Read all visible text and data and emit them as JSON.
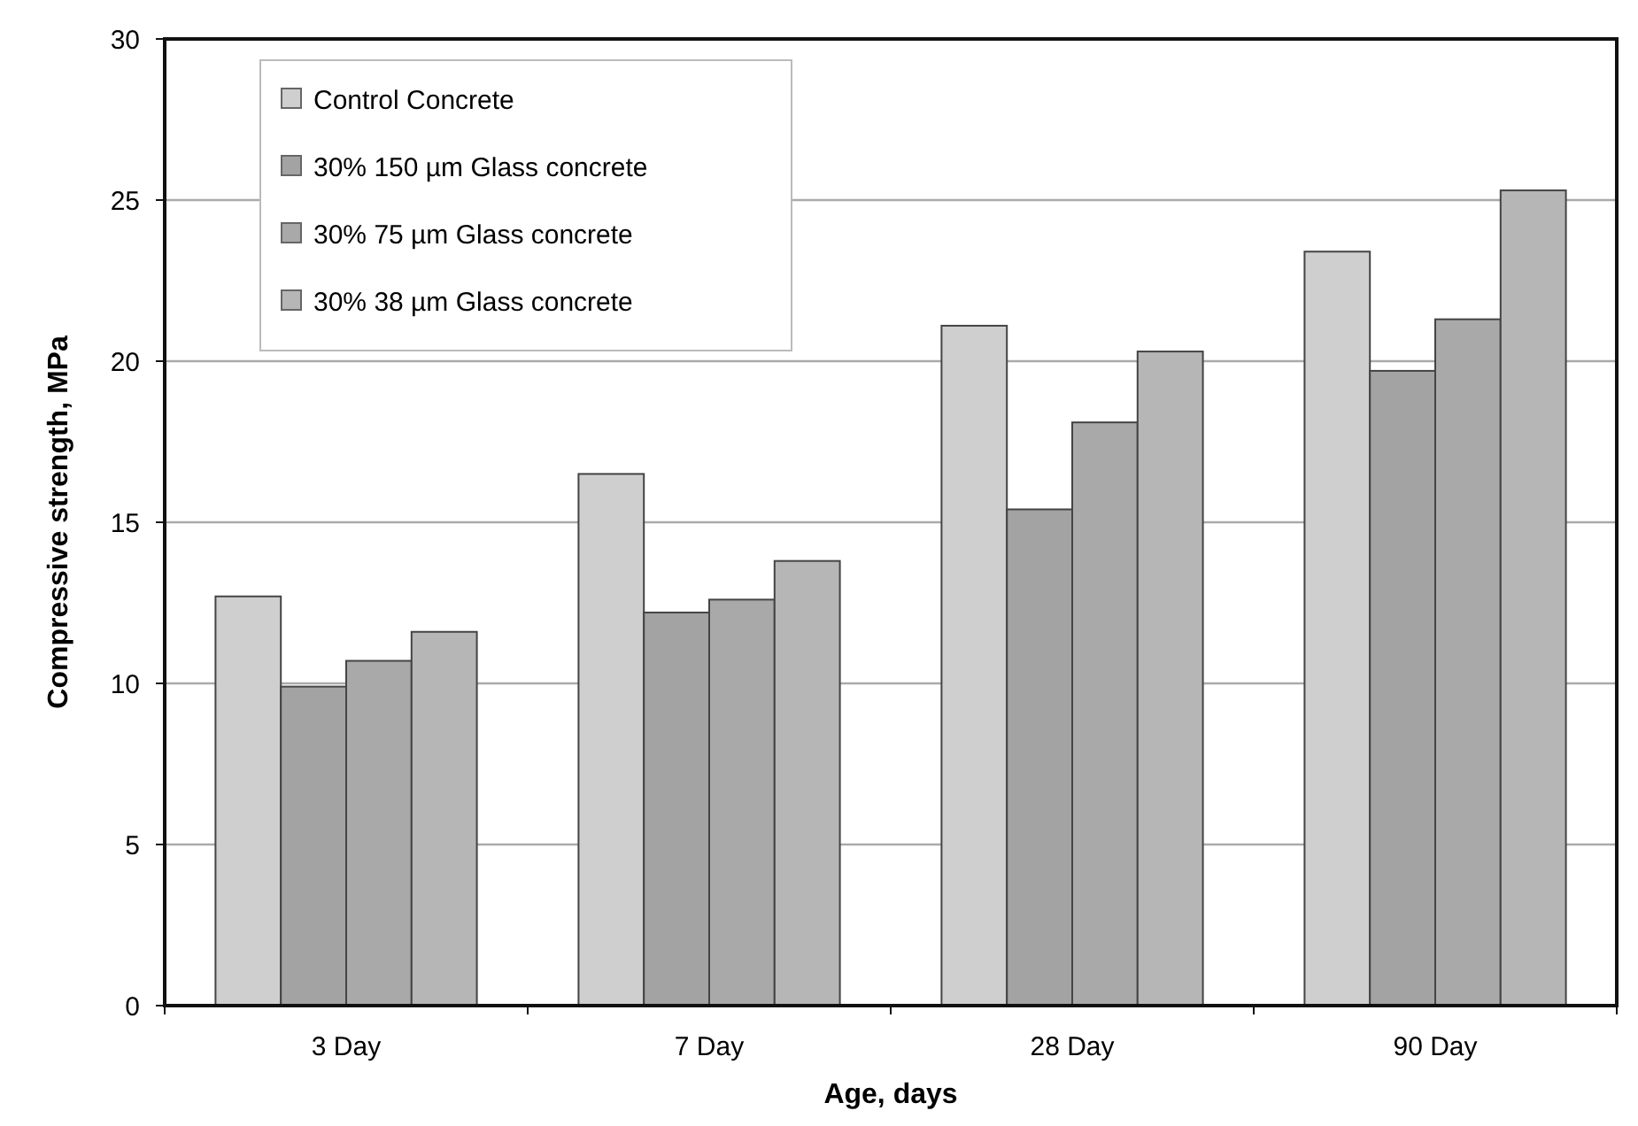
{
  "chart_data": {
    "type": "bar",
    "xlabel": "Age, days",
    "ylabel": "Compressive strength, MPa",
    "categories": [
      "3 Day",
      "7 Day",
      "28 Day",
      "90 Day"
    ],
    "series": [
      {
        "name": "Control Concrete",
        "color": "#cfcfcf",
        "values": [
          12.7,
          16.5,
          21.1,
          23.4
        ]
      },
      {
        "name": "30% 150 µm Glass concrete",
        "color": "#a3a3a3",
        "values": [
          9.9,
          12.2,
          15.4,
          19.7
        ]
      },
      {
        "name": "30% 75 µm Glass concrete",
        "color": "#a9a9a9",
        "values": [
          10.7,
          12.6,
          18.1,
          21.3
        ]
      },
      {
        "name": "30% 38 µm Glass concrete",
        "color": "#b6b6b6",
        "values": [
          11.6,
          13.8,
          20.3,
          25.3
        ]
      }
    ],
    "ylim": [
      0,
      30
    ],
    "yticks": [
      0,
      5,
      10,
      15,
      20,
      25,
      30
    ],
    "grid": "y",
    "legend": "top left"
  }
}
